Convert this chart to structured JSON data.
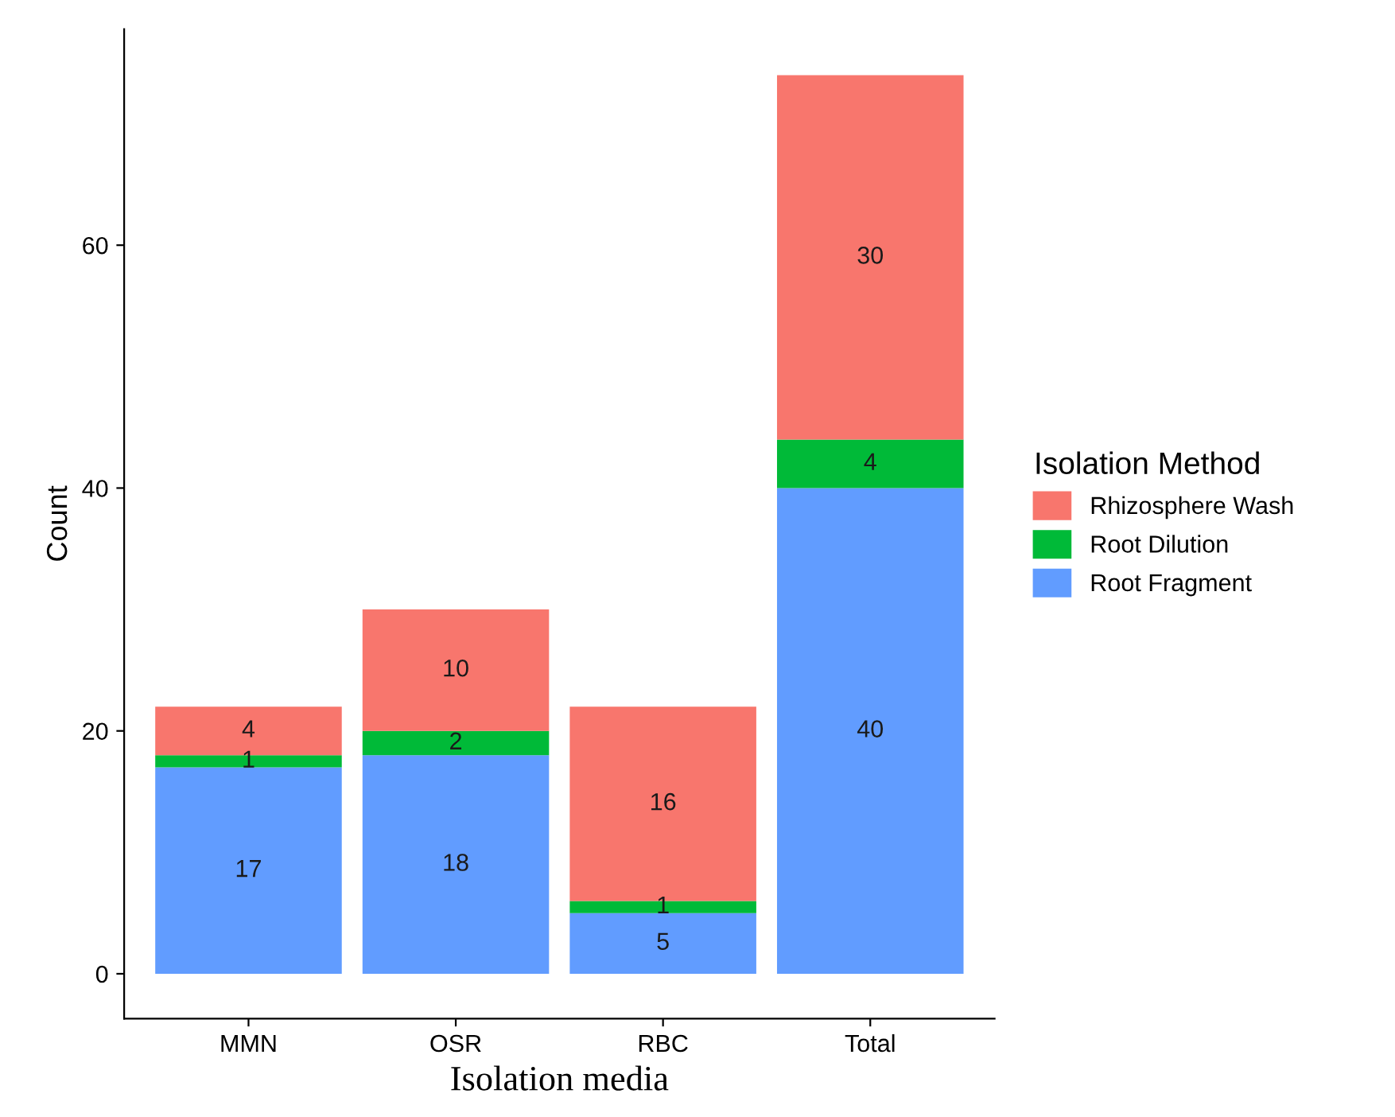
{
  "chart_data": {
    "type": "bar",
    "stacked": true,
    "xlabel": "Isolation media",
    "ylabel": "Count",
    "legend_title": "Isolation Method",
    "categories": [
      "MMN",
      "OSR",
      "RBC",
      "Total"
    ],
    "series": [
      {
        "name": "Root Fragment",
        "color": "#619cff",
        "values": [
          17,
          18,
          5,
          40
        ]
      },
      {
        "name": "Root Dilution",
        "color": "#00ba38",
        "values": [
          1,
          2,
          1,
          4
        ]
      },
      {
        "name": "Rhizosphere Wash",
        "color": "#f8766d",
        "values": [
          4,
          10,
          16,
          30
        ]
      }
    ],
    "ylim": [
      -3.7,
      77.8
    ],
    "yticks": [
      0,
      20,
      40,
      60
    ],
    "data_labels": true,
    "legend": "right",
    "grid": false
  }
}
